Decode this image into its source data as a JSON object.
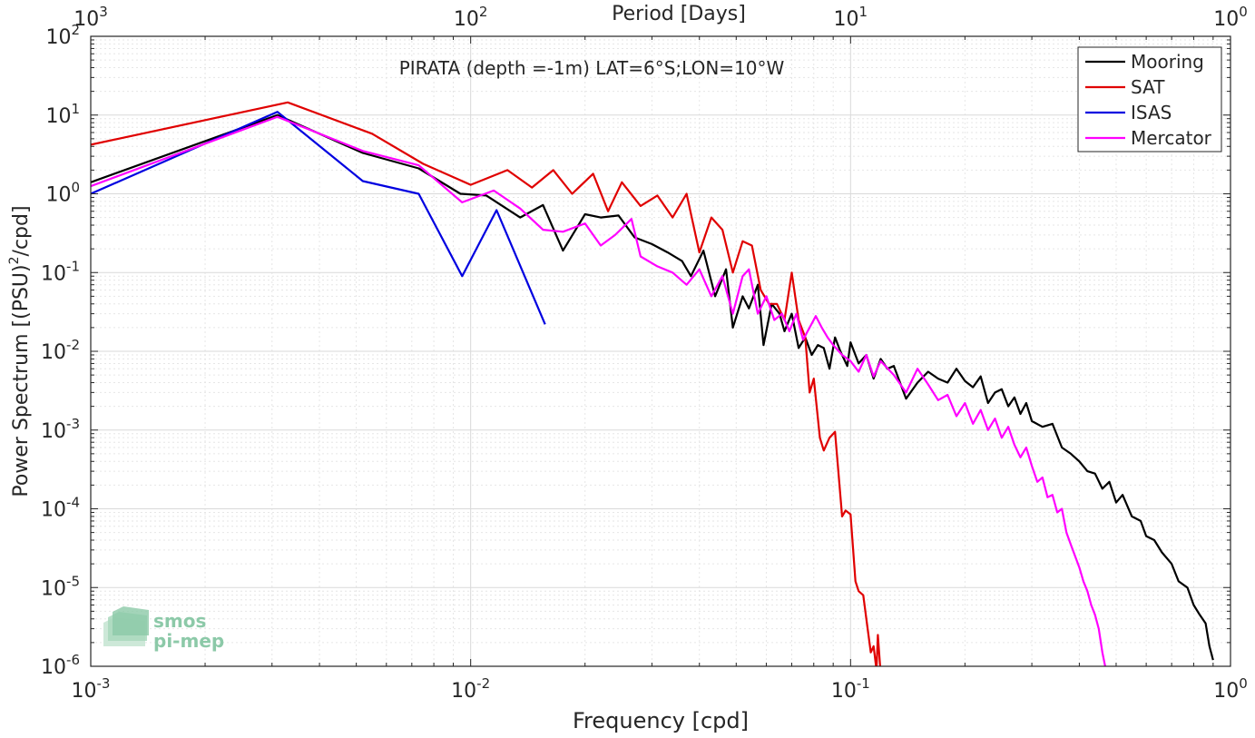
{
  "chart_data": {
    "type": "line",
    "title": "PIRATA (depth =-1m) LAT=6°S;LON=10°W",
    "xlabel": "Frequency [cpd]",
    "ylabel_parts": {
      "before": "Power Spectrum [(PSU)",
      "sup": "2",
      "after": "/cpd]"
    },
    "x2label": "Period [Days]",
    "xscale": "log",
    "yscale": "log",
    "xlim": [
      0.001,
      1
    ],
    "ylim": [
      1e-06,
      100
    ],
    "grid": true,
    "legend_position": "top-right",
    "x_ticks": [
      {
        "value": 0.001,
        "base": "10",
        "exp": "-3"
      },
      {
        "value": 0.01,
        "base": "10",
        "exp": "-2"
      },
      {
        "value": 0.1,
        "base": "10",
        "exp": "-1"
      },
      {
        "value": 1,
        "base": "10",
        "exp": "0"
      }
    ],
    "x2_ticks": [
      {
        "value": 0.001,
        "base": "10",
        "exp": "3"
      },
      {
        "value": 0.01,
        "base": "10",
        "exp": "2"
      },
      {
        "value": 0.1,
        "base": "10",
        "exp": "1"
      },
      {
        "value": 1,
        "base": "10",
        "exp": "0"
      }
    ],
    "y_ticks": [
      {
        "value": 1e-06,
        "base": "10",
        "exp": "-6"
      },
      {
        "value": 1e-05,
        "base": "10",
        "exp": "-5"
      },
      {
        "value": 0.0001,
        "base": "10",
        "exp": "-4"
      },
      {
        "value": 0.001,
        "base": "10",
        "exp": "-3"
      },
      {
        "value": 0.01,
        "base": "10",
        "exp": "-2"
      },
      {
        "value": 0.1,
        "base": "10",
        "exp": "-1"
      },
      {
        "value": 1,
        "base": "10",
        "exp": "0"
      },
      {
        "value": 10,
        "base": "10",
        "exp": "1"
      },
      {
        "value": 100,
        "base": "10",
        "exp": "2"
      }
    ],
    "series": [
      {
        "name": "Mooring",
        "color": "#000000",
        "points": [
          [
            0.001,
            1.4
          ],
          [
            0.0031,
            10
          ],
          [
            0.0052,
            3.3
          ],
          [
            0.0073,
            2.1
          ],
          [
            0.0094,
            1.0
          ],
          [
            0.011,
            0.95
          ],
          [
            0.0135,
            0.5
          ],
          [
            0.0155,
            0.72
          ],
          [
            0.0175,
            0.19
          ],
          [
            0.02,
            0.55
          ],
          [
            0.022,
            0.5
          ],
          [
            0.0245,
            0.53
          ],
          [
            0.027,
            0.28
          ],
          [
            0.03,
            0.23
          ],
          [
            0.033,
            0.18
          ],
          [
            0.036,
            0.14
          ],
          [
            0.038,
            0.09
          ],
          [
            0.041,
            0.19
          ],
          [
            0.044,
            0.05
          ],
          [
            0.047,
            0.11
          ],
          [
            0.049,
            0.02
          ],
          [
            0.052,
            0.05
          ],
          [
            0.054,
            0.035
          ],
          [
            0.057,
            0.07
          ],
          [
            0.059,
            0.012
          ],
          [
            0.062,
            0.04
          ],
          [
            0.065,
            0.03
          ],
          [
            0.067,
            0.018
          ],
          [
            0.07,
            0.03
          ],
          [
            0.073,
            0.011
          ],
          [
            0.076,
            0.015
          ],
          [
            0.079,
            0.009
          ],
          [
            0.082,
            0.012
          ],
          [
            0.085,
            0.011
          ],
          [
            0.088,
            0.006
          ],
          [
            0.091,
            0.015
          ],
          [
            0.094,
            0.01
          ],
          [
            0.098,
            0.0065
          ],
          [
            0.1,
            0.013
          ],
          [
            0.105,
            0.007
          ],
          [
            0.11,
            0.009
          ],
          [
            0.115,
            0.0045
          ],
          [
            0.12,
            0.008
          ],
          [
            0.125,
            0.006
          ],
          [
            0.13,
            0.0065
          ],
          [
            0.14,
            0.0025
          ],
          [
            0.15,
            0.004
          ],
          [
            0.16,
            0.0055
          ],
          [
            0.17,
            0.0045
          ],
          [
            0.18,
            0.004
          ],
          [
            0.19,
            0.006
          ],
          [
            0.2,
            0.0042
          ],
          [
            0.21,
            0.0035
          ],
          [
            0.22,
            0.0048
          ],
          [
            0.23,
            0.0022
          ],
          [
            0.24,
            0.003
          ],
          [
            0.25,
            0.0033
          ],
          [
            0.26,
            0.002
          ],
          [
            0.27,
            0.0026
          ],
          [
            0.28,
            0.0016
          ],
          [
            0.29,
            0.0022
          ],
          [
            0.3,
            0.0013
          ],
          [
            0.32,
            0.0011
          ],
          [
            0.34,
            0.0012
          ],
          [
            0.36,
            0.0006
          ],
          [
            0.38,
            0.0005
          ],
          [
            0.4,
            0.0004
          ],
          [
            0.42,
            0.0003
          ],
          [
            0.44,
            0.00028
          ],
          [
            0.46,
            0.00018
          ],
          [
            0.48,
            0.00022
          ],
          [
            0.5,
            0.00012
          ],
          [
            0.52,
            0.00015
          ],
          [
            0.55,
            8e-05
          ],
          [
            0.58,
            7e-05
          ],
          [
            0.6,
            4.5e-05
          ],
          [
            0.63,
            4e-05
          ],
          [
            0.66,
            2.8e-05
          ],
          [
            0.7,
            2e-05
          ],
          [
            0.73,
            1.2e-05
          ],
          [
            0.77,
            1e-05
          ],
          [
            0.8,
            6e-06
          ],
          [
            0.83,
            4.5e-06
          ],
          [
            0.86,
            3.5e-06
          ],
          [
            0.88,
            1.8e-06
          ],
          [
            0.9,
            1.2e-06
          ]
        ]
      },
      {
        "name": "SAT",
        "color": "#e00000",
        "points": [
          [
            0.001,
            4.2
          ],
          [
            0.0033,
            14.5
          ],
          [
            0.0055,
            5.8
          ],
          [
            0.0075,
            2.4
          ],
          [
            0.01,
            1.3
          ],
          [
            0.0125,
            2.0
          ],
          [
            0.0145,
            1.2
          ],
          [
            0.0165,
            2.0
          ],
          [
            0.0185,
            1.0
          ],
          [
            0.021,
            1.8
          ],
          [
            0.023,
            0.6
          ],
          [
            0.025,
            1.4
          ],
          [
            0.028,
            0.7
          ],
          [
            0.031,
            0.95
          ],
          [
            0.034,
            0.5
          ],
          [
            0.037,
            1.0
          ],
          [
            0.04,
            0.18
          ],
          [
            0.043,
            0.5
          ],
          [
            0.046,
            0.35
          ],
          [
            0.049,
            0.1
          ],
          [
            0.052,
            0.25
          ],
          [
            0.055,
            0.22
          ],
          [
            0.058,
            0.06
          ],
          [
            0.061,
            0.04
          ],
          [
            0.064,
            0.04
          ],
          [
            0.067,
            0.025
          ],
          [
            0.07,
            0.1
          ],
          [
            0.073,
            0.025
          ],
          [
            0.076,
            0.015
          ],
          [
            0.078,
            0.003
          ],
          [
            0.08,
            0.0045
          ],
          [
            0.083,
            0.0008
          ],
          [
            0.085,
            0.00055
          ],
          [
            0.088,
            0.0008
          ],
          [
            0.091,
            0.00095
          ],
          [
            0.095,
            8e-05
          ],
          [
            0.097,
            9.5e-05
          ],
          [
            0.1,
            8.5e-05
          ],
          [
            0.103,
            1.2e-05
          ],
          [
            0.105,
            9e-06
          ],
          [
            0.108,
            8e-06
          ],
          [
            0.11,
            4e-06
          ],
          [
            0.113,
            1.5e-06
          ],
          [
            0.115,
            1.8e-06
          ],
          [
            0.117,
            9e-07
          ],
          [
            0.118,
            2.5e-06
          ],
          [
            0.12,
            8e-07
          ]
        ]
      },
      {
        "name": "ISAS",
        "color": "#0000e0",
        "points": [
          [
            0.001,
            1.0
          ],
          [
            0.0031,
            11
          ],
          [
            0.0052,
            1.45
          ],
          [
            0.0073,
            1.0
          ],
          [
            0.0095,
            0.09
          ],
          [
            0.0117,
            0.62
          ],
          [
            0.0157,
            0.022
          ]
        ]
      },
      {
        "name": "Mercator",
        "color": "#ff00ff",
        "points": [
          [
            0.001,
            1.25
          ],
          [
            0.0031,
            9.5
          ],
          [
            0.0052,
            3.5
          ],
          [
            0.0073,
            2.3
          ],
          [
            0.0095,
            0.78
          ],
          [
            0.0115,
            1.1
          ],
          [
            0.0135,
            0.65
          ],
          [
            0.0155,
            0.35
          ],
          [
            0.0175,
            0.33
          ],
          [
            0.02,
            0.42
          ],
          [
            0.022,
            0.22
          ],
          [
            0.024,
            0.3
          ],
          [
            0.0265,
            0.48
          ],
          [
            0.028,
            0.16
          ],
          [
            0.031,
            0.12
          ],
          [
            0.034,
            0.1
          ],
          [
            0.037,
            0.07
          ],
          [
            0.04,
            0.11
          ],
          [
            0.043,
            0.05
          ],
          [
            0.046,
            0.09
          ],
          [
            0.049,
            0.03
          ],
          [
            0.052,
            0.09
          ],
          [
            0.054,
            0.11
          ],
          [
            0.057,
            0.03
          ],
          [
            0.06,
            0.05
          ],
          [
            0.063,
            0.025
          ],
          [
            0.066,
            0.03
          ],
          [
            0.069,
            0.018
          ],
          [
            0.072,
            0.03
          ],
          [
            0.075,
            0.014
          ],
          [
            0.078,
            0.02
          ],
          [
            0.081,
            0.028
          ],
          [
            0.084,
            0.02
          ],
          [
            0.087,
            0.015
          ],
          [
            0.09,
            0.012
          ],
          [
            0.095,
            0.009
          ],
          [
            0.1,
            0.0075
          ],
          [
            0.105,
            0.0055
          ],
          [
            0.11,
            0.009
          ],
          [
            0.115,
            0.0048
          ],
          [
            0.12,
            0.0075
          ],
          [
            0.13,
            0.005
          ],
          [
            0.14,
            0.003
          ],
          [
            0.15,
            0.006
          ],
          [
            0.16,
            0.0038
          ],
          [
            0.17,
            0.0024
          ],
          [
            0.18,
            0.0028
          ],
          [
            0.19,
            0.0015
          ],
          [
            0.2,
            0.0022
          ],
          [
            0.21,
            0.0012
          ],
          [
            0.22,
            0.0018
          ],
          [
            0.23,
            0.001
          ],
          [
            0.24,
            0.0014
          ],
          [
            0.25,
            0.0008
          ],
          [
            0.26,
            0.0011
          ],
          [
            0.27,
            0.00065
          ],
          [
            0.28,
            0.00045
          ],
          [
            0.29,
            0.0006
          ],
          [
            0.3,
            0.00035
          ],
          [
            0.31,
            0.00022
          ],
          [
            0.32,
            0.00025
          ],
          [
            0.33,
            0.00014
          ],
          [
            0.34,
            0.00015
          ],
          [
            0.35,
            9e-05
          ],
          [
            0.36,
            0.0001
          ],
          [
            0.37,
            5e-05
          ],
          [
            0.38,
            3.5e-05
          ],
          [
            0.39,
            2.5e-05
          ],
          [
            0.4,
            1.8e-05
          ],
          [
            0.41,
            1.2e-05
          ],
          [
            0.42,
            9e-06
          ],
          [
            0.43,
            6e-06
          ],
          [
            0.44,
            4.5e-06
          ],
          [
            0.45,
            3e-06
          ],
          [
            0.46,
            1.5e-06
          ],
          [
            0.47,
            9e-07
          ]
        ]
      }
    ]
  },
  "logo": {
    "line1": "smos",
    "line2": "pi-mep",
    "color": "#8cc9a8"
  }
}
